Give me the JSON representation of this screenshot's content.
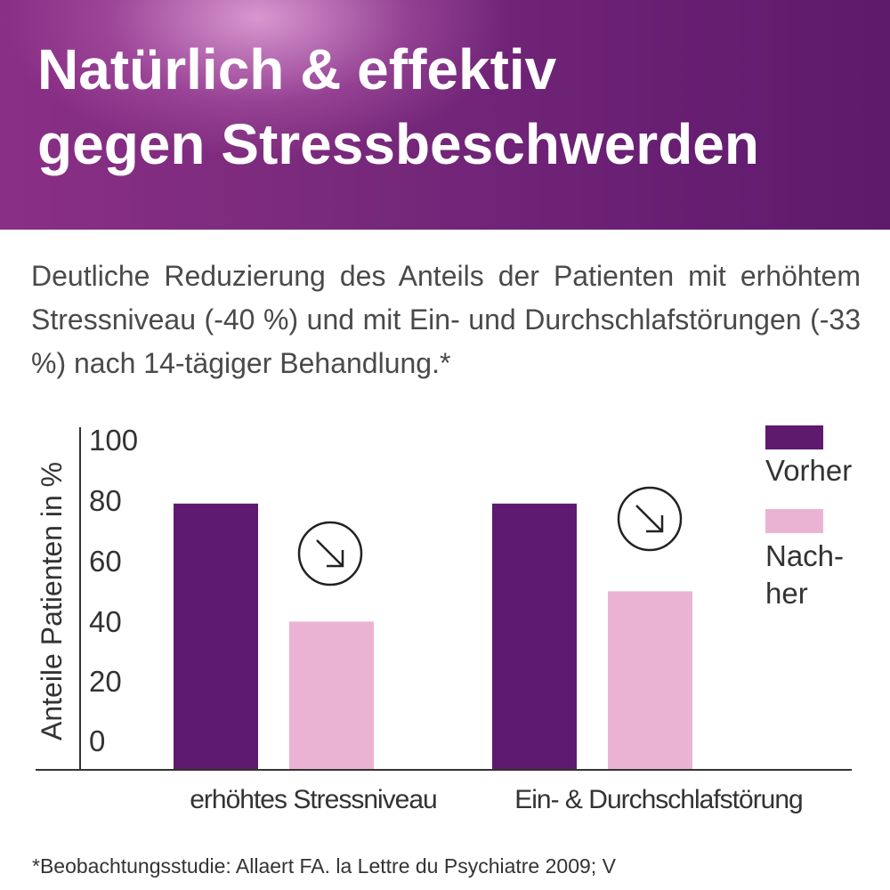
{
  "header": {
    "title_line1": "Natürlich & effektiv",
    "title_line2": "gegen Stressbeschwerden"
  },
  "subtitle": "Deutliche Reduzierung des Anteils der Patienten mit erhöhtem Stressniveau (-40 %) und mit Ein- und Durchschlafstörungen (-33 %) nach 14-tägiger Behandlung.*",
  "footnote": "*Beobachtungsstudie: Allaert FA. la Lettre du Psychiatre 2009; V",
  "colors": {
    "vorher": "#5e1a6e",
    "nachher": "#ebb3d3",
    "header_dark": "#6a2074"
  },
  "legend": {
    "vorher_label": "Vorher",
    "nachher_label_line1": "Nach-",
    "nachher_label_line2": "her"
  },
  "chart_data": {
    "type": "bar",
    "ylabel": "Anteile Patienten in %",
    "xlabel": "",
    "ylim": [
      0,
      100
    ],
    "yticks": [
      0,
      20,
      40,
      60,
      80,
      100
    ],
    "categories": [
      "erhöhtes Stressniveau",
      "Ein- & Durchschlafstörung"
    ],
    "series": [
      {
        "name": "Vorher",
        "values": [
          88,
          88
        ]
      },
      {
        "name": "Nachher",
        "values": [
          49,
          59
        ]
      }
    ],
    "annotations": [
      "down-right-arrow-icon",
      "down-right-arrow-icon"
    ],
    "legend_position": "right"
  }
}
